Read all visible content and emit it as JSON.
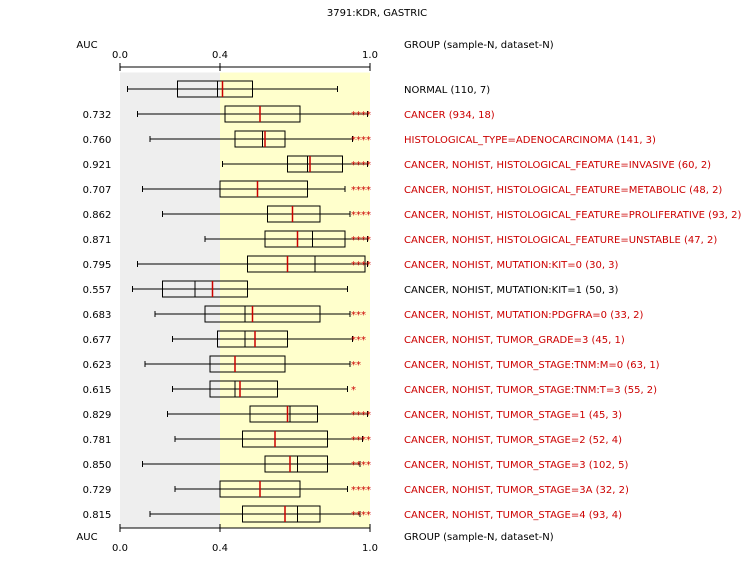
{
  "colors": {
    "significant_label": "#cc0000",
    "normal_label": "#000000",
    "median_line": "#cc0000",
    "stars": "#cc0000",
    "gray_band": "#eeeeee",
    "yellow_band": "#ffffcc",
    "box_stroke": "#000000"
  },
  "chart_data": {
    "type": "boxplot",
    "title": "3791:KDR, GASTRIC",
    "auc_header": "AUC",
    "group_header": "GROUP (sample-N, dataset-N)",
    "xlim": [
      0.0,
      1.0
    ],
    "ticks": [
      {
        "value": 0.0,
        "label": "0.0"
      },
      {
        "value": 0.4,
        "label": "0.4"
      },
      {
        "value": 1.0,
        "label": "1.0"
      }
    ],
    "gray_region": [
      0.0,
      0.4
    ],
    "yellow_region": [
      0.4,
      1.0
    ],
    "rows": [
      {
        "label": "NORMAL (110, 7)",
        "auc": "",
        "stars": "",
        "significant": false,
        "whisker_low": 0.03,
        "q1": 0.23,
        "median": 0.39,
        "mean": 0.41,
        "q3": 0.53,
        "whisker_high": 0.87
      },
      {
        "label": "CANCER (934, 18)",
        "auc": "0.732",
        "stars": "****",
        "significant": true,
        "whisker_low": 0.07,
        "q1": 0.42,
        "median": 0.56,
        "mean": 0.56,
        "q3": 0.72,
        "whisker_high": 0.99
      },
      {
        "label": "HISTOLOGICAL_TYPE=ADENOCARCINOMA (141, 3)",
        "auc": "0.760",
        "stars": "****",
        "significant": true,
        "whisker_low": 0.12,
        "q1": 0.46,
        "median": 0.57,
        "mean": 0.58,
        "q3": 0.66,
        "whisker_high": 0.93
      },
      {
        "label": "CANCER, NOHIST, HISTOLOGICAL_FEATURE=INVASIVE (60, 2)",
        "auc": "0.921",
        "stars": "****",
        "significant": true,
        "whisker_low": 0.41,
        "q1": 0.67,
        "median": 0.75,
        "mean": 0.76,
        "q3": 0.89,
        "whisker_high": 0.99
      },
      {
        "label": "CANCER, NOHIST, HISTOLOGICAL_FEATURE=METABOLIC (48, 2)",
        "auc": "0.707",
        "stars": "****",
        "significant": true,
        "whisker_low": 0.09,
        "q1": 0.4,
        "median": 0.55,
        "mean": 0.55,
        "q3": 0.75,
        "whisker_high": 0.9
      },
      {
        "label": "CANCER, NOHIST, HISTOLOGICAL_FEATURE=PROLIFERATIVE (93, 2)",
        "auc": "0.862",
        "stars": "****",
        "significant": true,
        "whisker_low": 0.17,
        "q1": 0.59,
        "median": 0.69,
        "mean": 0.69,
        "q3": 0.8,
        "whisker_high": 0.92
      },
      {
        "label": "CANCER, NOHIST, HISTOLOGICAL_FEATURE=UNSTABLE (47, 2)",
        "auc": "0.871",
        "stars": "****",
        "significant": true,
        "whisker_low": 0.34,
        "q1": 0.58,
        "median": 0.77,
        "mean": 0.71,
        "q3": 0.9,
        "whisker_high": 0.99
      },
      {
        "label": "CANCER, NOHIST, MUTATION:KIT=0 (30, 3)",
        "auc": "0.795",
        "stars": "****",
        "significant": true,
        "whisker_low": 0.07,
        "q1": 0.51,
        "median": 0.78,
        "mean": 0.67,
        "q3": 0.98,
        "whisker_high": 0.99
      },
      {
        "label": "CANCER, NOHIST, MUTATION:KIT=1 (50, 3)",
        "auc": "0.557",
        "stars": "",
        "significant": false,
        "whisker_low": 0.05,
        "q1": 0.17,
        "median": 0.3,
        "mean": 0.37,
        "q3": 0.51,
        "whisker_high": 0.91
      },
      {
        "label": "CANCER, NOHIST, MUTATION:PDGFRA=0 (33, 2)",
        "auc": "0.683",
        "stars": "***",
        "significant": true,
        "whisker_low": 0.14,
        "q1": 0.34,
        "median": 0.5,
        "mean": 0.53,
        "q3": 0.8,
        "whisker_high": 0.92
      },
      {
        "label": "CANCER, NOHIST, TUMOR_GRADE=3 (45, 1)",
        "auc": "0.677",
        "stars": "***",
        "significant": true,
        "whisker_low": 0.21,
        "q1": 0.39,
        "median": 0.5,
        "mean": 0.54,
        "q3": 0.67,
        "whisker_high": 0.93
      },
      {
        "label": "CANCER, NOHIST, TUMOR_STAGE:TNM:M=0 (63, 1)",
        "auc": "0.623",
        "stars": "**",
        "significant": true,
        "whisker_low": 0.1,
        "q1": 0.36,
        "median": 0.46,
        "mean": 0.46,
        "q3": 0.66,
        "whisker_high": 0.92
      },
      {
        "label": "CANCER, NOHIST, TUMOR_STAGE:TNM:T=3 (55, 2)",
        "auc": "0.615",
        "stars": "*",
        "significant": true,
        "whisker_low": 0.21,
        "q1": 0.36,
        "median": 0.46,
        "mean": 0.48,
        "q3": 0.63,
        "whisker_high": 0.91
      },
      {
        "label": "CANCER, NOHIST, TUMOR_STAGE=1 (45, 3)",
        "auc": "0.829",
        "stars": "****",
        "significant": true,
        "whisker_low": 0.19,
        "q1": 0.52,
        "median": 0.68,
        "mean": 0.67,
        "q3": 0.79,
        "whisker_high": 0.99
      },
      {
        "label": "CANCER, NOHIST, TUMOR_STAGE=2 (52, 4)",
        "auc": "0.781",
        "stars": "****",
        "significant": true,
        "whisker_low": 0.22,
        "q1": 0.49,
        "median": 0.62,
        "mean": 0.62,
        "q3": 0.83,
        "whisker_high": 0.97
      },
      {
        "label": "CANCER, NOHIST, TUMOR_STAGE=3 (102, 5)",
        "auc": "0.850",
        "stars": "****",
        "significant": true,
        "whisker_low": 0.09,
        "q1": 0.58,
        "median": 0.71,
        "mean": 0.68,
        "q3": 0.83,
        "whisker_high": 0.96
      },
      {
        "label": "CANCER, NOHIST, TUMOR_STAGE=3A (32, 2)",
        "auc": "0.729",
        "stars": "****",
        "significant": true,
        "whisker_low": 0.22,
        "q1": 0.4,
        "median": 0.56,
        "mean": 0.56,
        "q3": 0.72,
        "whisker_high": 0.91
      },
      {
        "label": "CANCER, NOHIST, TUMOR_STAGE=4 (93, 4)",
        "auc": "0.815",
        "stars": "****",
        "significant": true,
        "whisker_low": 0.12,
        "q1": 0.49,
        "median": 0.71,
        "mean": 0.66,
        "q3": 0.8,
        "whisker_high": 0.96
      }
    ]
  }
}
